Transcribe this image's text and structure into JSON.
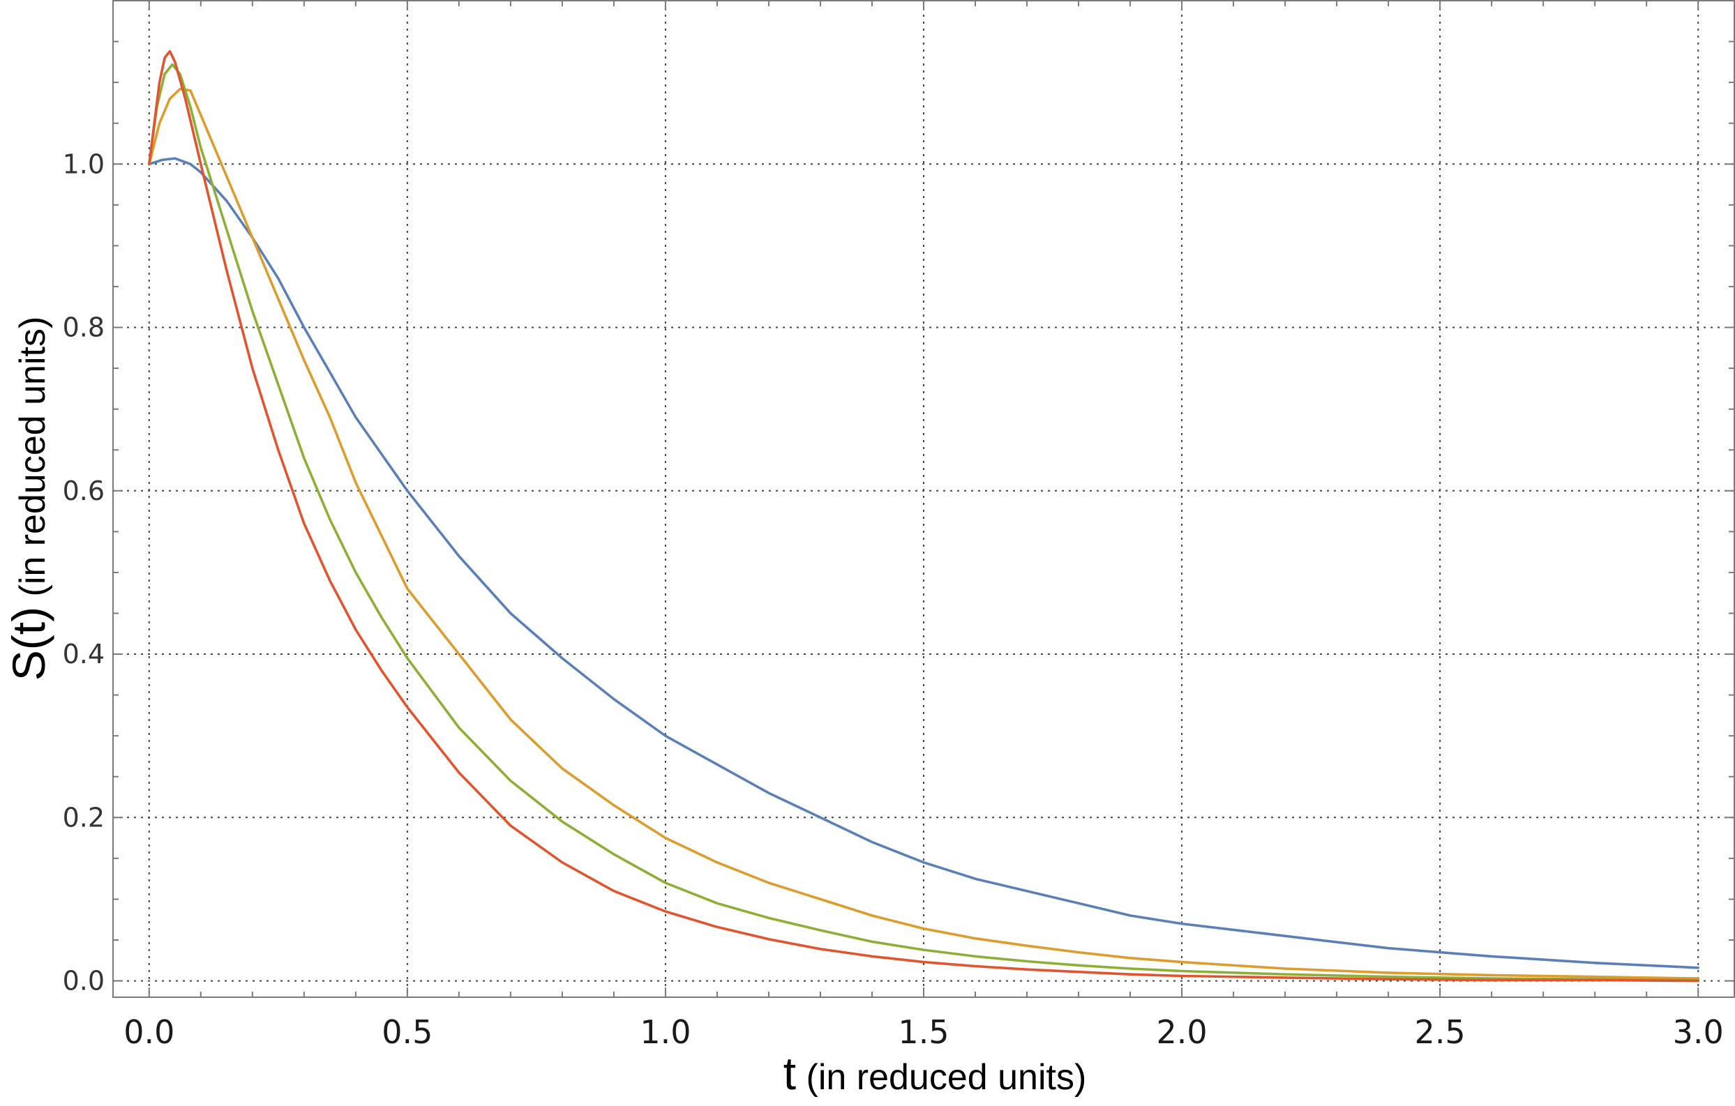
{
  "chart_data": {
    "type": "line",
    "xlabel": {
      "symbol": "t",
      "text": " (in reduced units)"
    },
    "ylabel": {
      "symbol": "S(t)",
      "text": " (in reduced units)"
    },
    "xlim": [
      -0.07,
      3.07
    ],
    "ylim": [
      -0.02,
      1.2
    ],
    "xticks": [
      "0.0",
      "0.5",
      "1.0",
      "1.5",
      "2.0",
      "2.5",
      "3.0"
    ],
    "xtick_values": [
      0,
      0.5,
      1.0,
      1.5,
      2.0,
      2.5,
      3.0
    ],
    "yticks": [
      "0.0",
      "0.2",
      "0.4",
      "0.6",
      "0.8",
      "1.0"
    ],
    "ytick_values": [
      0,
      0.2,
      0.4,
      0.6,
      0.8,
      1.0
    ],
    "grid": true,
    "legend": "none",
    "series": [
      {
        "color": "#5a7fb9",
        "points": [
          [
            0.0,
            1.0
          ],
          [
            0.025,
            1.005
          ],
          [
            0.05,
            1.007
          ],
          [
            0.08,
            1.0
          ],
          [
            0.1,
            0.99
          ],
          [
            0.15,
            0.955
          ],
          [
            0.2,
            0.91
          ],
          [
            0.25,
            0.86
          ],
          [
            0.3,
            0.8
          ],
          [
            0.35,
            0.745
          ],
          [
            0.4,
            0.69
          ],
          [
            0.45,
            0.645
          ],
          [
            0.5,
            0.6
          ],
          [
            0.6,
            0.52
          ],
          [
            0.7,
            0.45
          ],
          [
            0.8,
            0.395
          ],
          [
            0.9,
            0.345
          ],
          [
            1.0,
            0.3
          ],
          [
            1.1,
            0.265
          ],
          [
            1.2,
            0.23
          ],
          [
            1.3,
            0.2
          ],
          [
            1.4,
            0.17
          ],
          [
            1.5,
            0.145
          ],
          [
            1.6,
            0.125
          ],
          [
            1.7,
            0.11
          ],
          [
            1.8,
            0.095
          ],
          [
            1.9,
            0.08
          ],
          [
            2.0,
            0.07
          ],
          [
            2.2,
            0.055
          ],
          [
            2.4,
            0.04
          ],
          [
            2.6,
            0.03
          ],
          [
            2.8,
            0.022
          ],
          [
            3.0,
            0.016
          ]
        ]
      },
      {
        "color": "#dd9c2b",
        "points": [
          [
            0.0,
            1.0
          ],
          [
            0.02,
            1.05
          ],
          [
            0.04,
            1.08
          ],
          [
            0.06,
            1.092
          ],
          [
            0.08,
            1.09
          ],
          [
            0.1,
            1.06
          ],
          [
            0.15,
            0.985
          ],
          [
            0.2,
            0.91
          ],
          [
            0.25,
            0.835
          ],
          [
            0.3,
            0.76
          ],
          [
            0.35,
            0.69
          ],
          [
            0.4,
            0.61
          ],
          [
            0.45,
            0.545
          ],
          [
            0.5,
            0.48
          ],
          [
            0.6,
            0.4
          ],
          [
            0.7,
            0.32
          ],
          [
            0.8,
            0.26
          ],
          [
            0.9,
            0.215
          ],
          [
            1.0,
            0.175
          ],
          [
            1.1,
            0.145
          ],
          [
            1.2,
            0.12
          ],
          [
            1.3,
            0.1
          ],
          [
            1.4,
            0.08
          ],
          [
            1.5,
            0.064
          ],
          [
            1.6,
            0.052
          ],
          [
            1.7,
            0.043
          ],
          [
            1.8,
            0.035
          ],
          [
            1.9,
            0.028
          ],
          [
            2.0,
            0.023
          ],
          [
            2.2,
            0.015
          ],
          [
            2.4,
            0.01
          ],
          [
            2.6,
            0.007
          ],
          [
            2.8,
            0.005
          ],
          [
            3.0,
            0.003
          ]
        ]
      },
      {
        "color": "#8cb035",
        "points": [
          [
            0.0,
            1.0
          ],
          [
            0.015,
            1.07
          ],
          [
            0.03,
            1.11
          ],
          [
            0.045,
            1.122
          ],
          [
            0.06,
            1.11
          ],
          [
            0.08,
            1.07
          ],
          [
            0.1,
            1.02
          ],
          [
            0.15,
            0.92
          ],
          [
            0.2,
            0.82
          ],
          [
            0.25,
            0.73
          ],
          [
            0.3,
            0.64
          ],
          [
            0.35,
            0.565
          ],
          [
            0.4,
            0.5
          ],
          [
            0.45,
            0.445
          ],
          [
            0.5,
            0.395
          ],
          [
            0.6,
            0.31
          ],
          [
            0.7,
            0.245
          ],
          [
            0.8,
            0.195
          ],
          [
            0.9,
            0.155
          ],
          [
            1.0,
            0.12
          ],
          [
            1.1,
            0.095
          ],
          [
            1.2,
            0.077
          ],
          [
            1.3,
            0.062
          ],
          [
            1.4,
            0.048
          ],
          [
            1.5,
            0.038
          ],
          [
            1.6,
            0.03
          ],
          [
            1.7,
            0.024
          ],
          [
            1.8,
            0.019
          ],
          [
            1.9,
            0.015
          ],
          [
            2.0,
            0.012
          ],
          [
            2.2,
            0.008
          ],
          [
            2.4,
            0.005
          ],
          [
            2.6,
            0.003
          ],
          [
            2.8,
            0.002
          ],
          [
            3.0,
            0.001
          ]
        ]
      },
      {
        "color": "#e2542e",
        "points": [
          [
            0.0,
            1.0
          ],
          [
            0.01,
            1.05
          ],
          [
            0.02,
            1.1
          ],
          [
            0.03,
            1.13
          ],
          [
            0.04,
            1.138
          ],
          [
            0.05,
            1.125
          ],
          [
            0.07,
            1.08
          ],
          [
            0.1,
            1.0
          ],
          [
            0.15,
            0.87
          ],
          [
            0.2,
            0.75
          ],
          [
            0.25,
            0.65
          ],
          [
            0.3,
            0.56
          ],
          [
            0.35,
            0.49
          ],
          [
            0.4,
            0.43
          ],
          [
            0.45,
            0.38
          ],
          [
            0.5,
            0.335
          ],
          [
            0.6,
            0.255
          ],
          [
            0.7,
            0.19
          ],
          [
            0.8,
            0.145
          ],
          [
            0.9,
            0.11
          ],
          [
            1.0,
            0.085
          ],
          [
            1.1,
            0.066
          ],
          [
            1.2,
            0.051
          ],
          [
            1.3,
            0.039
          ],
          [
            1.4,
            0.03
          ],
          [
            1.5,
            0.023
          ],
          [
            1.6,
            0.018
          ],
          [
            1.7,
            0.014
          ],
          [
            1.8,
            0.011
          ],
          [
            1.9,
            0.008
          ],
          [
            2.0,
            0.006
          ],
          [
            2.2,
            0.004
          ],
          [
            2.4,
            0.002
          ],
          [
            2.6,
            0.001
          ],
          [
            2.8,
            0.001
          ],
          [
            3.0,
            0.0
          ]
        ]
      }
    ]
  }
}
